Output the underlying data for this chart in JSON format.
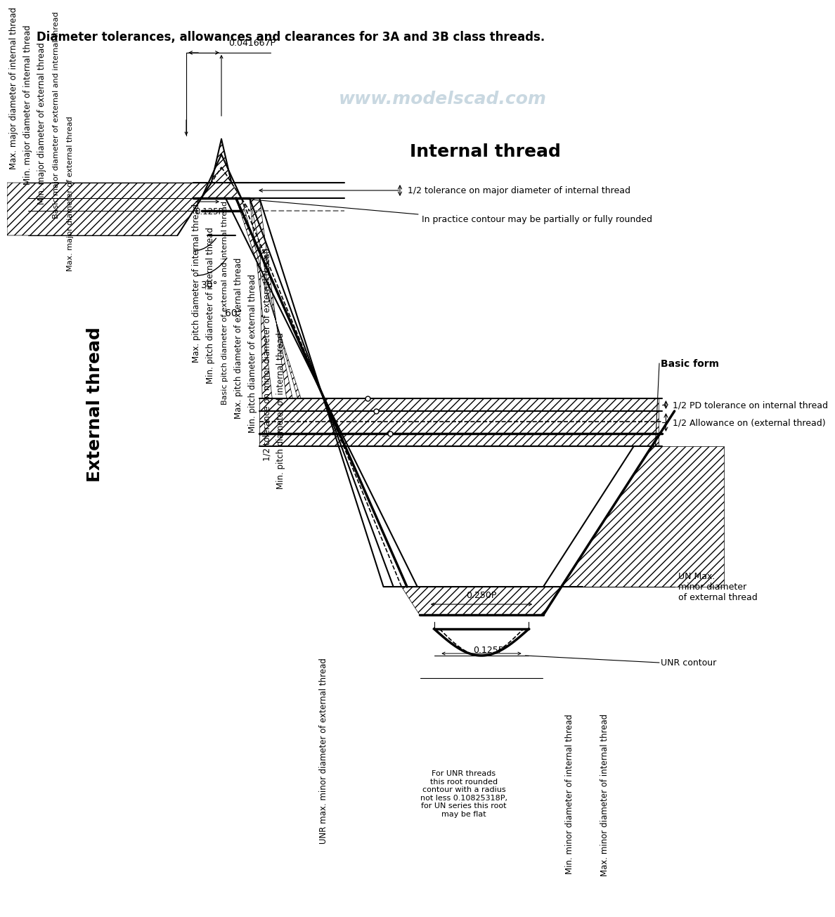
{
  "title": "Diameter tolerances, allowances and clearances for 3A and 3B class threads.",
  "watermark": "www.modelscad.com",
  "internal_thread_label": "Internal thread",
  "external_thread_label": "External thread",
  "bg_color": "#ffffff",
  "dim_labels": {
    "d041667P": "0.041667P",
    "d0125P": "0.125P",
    "d0250P": "0.250P",
    "d0125P_root": "0.125P",
    "ang30": "30°",
    "ang60": "60°",
    "ann_half_tol_maj_int": "1/2 tolerance on major diameter of internal thread",
    "ann_rounded": "In practice contour may be partially or fully rounded",
    "ann_pd_tol": "1/2 PD tolerance on internal thread",
    "ann_allowance": "1/2 Allowance on (external thread)",
    "ann_basic_form": "Basic form",
    "ann_UN_max": "UN Max.\nminor diameter\nof external thread",
    "ann_UNR": "UNR contour",
    "ann_UNR_text": "For UNR threads\nthis root rounded\ncontour with a radius\nnot less 0.10825318P,\nfor UN series this root\nmay be flat"
  },
  "left_labels": [
    "Max. major diameter of internal thread",
    "Min. major diameter of internal thread",
    "Min. major diameter of external thread",
    "Basic major diameter of external and internal thread",
    "Max. pitch diameter of internal thread",
    "Min. pitch diameter of internal thread",
    "Basic pitch diameter of external and internal thread",
    "Max. pitch diameter of external thread",
    "Min. pitch diameter of external thread",
    "1/2 tolerance on minor diameter of external thread",
    "Min. pitch diameter of internal thread"
  ],
  "bottom_labels": [
    "UNR max. minor diameter of external thread",
    "Min. minor diameter of internal thread",
    "Max. minor diameter of internal thread"
  ]
}
